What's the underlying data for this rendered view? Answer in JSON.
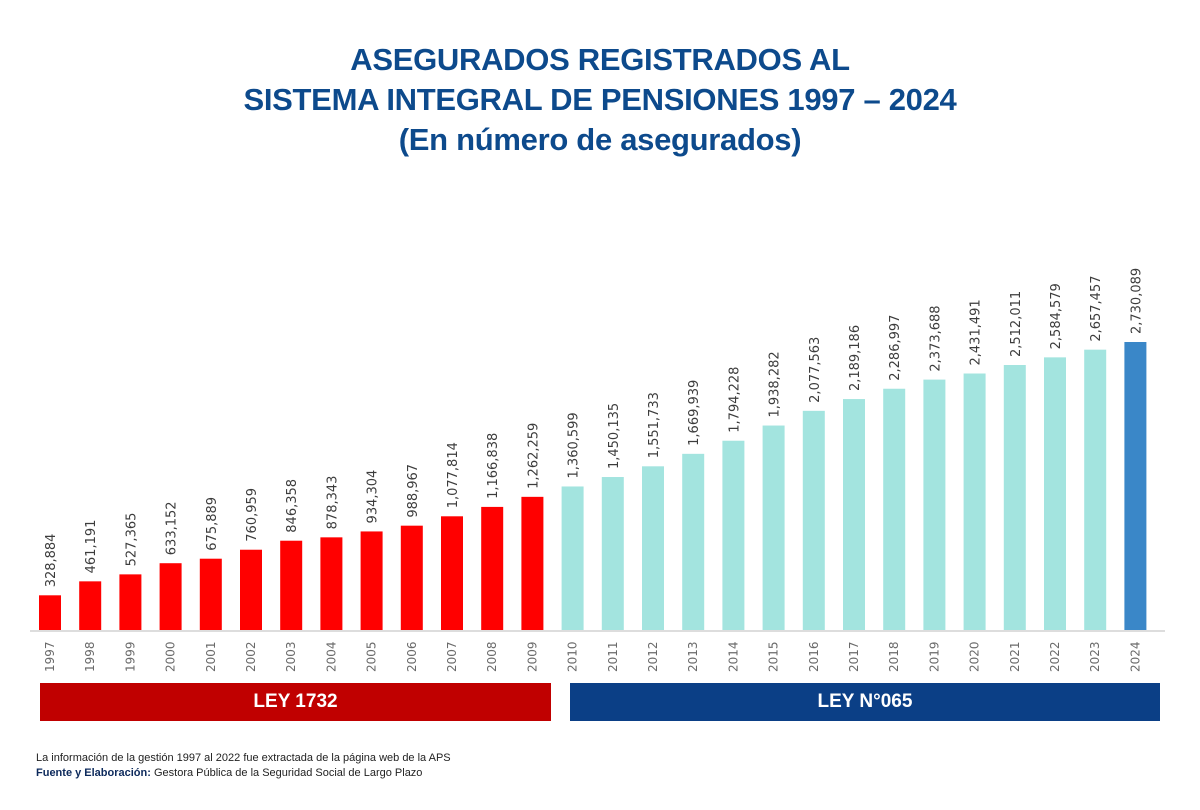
{
  "title": {
    "line1": "ASEGURADOS REGISTRADOS AL",
    "line2": "SISTEMA INTEGRAL DE PENSIONES 1997 – 2024",
    "line3": "(En número de asegurados)"
  },
  "colors": {
    "title": "#0d4a8c",
    "ley1732_bars": "#ff0000",
    "ley065_bars": "#a3e4df",
    "highlight_2024": "#3a87c8",
    "ley1732_band": "#c00000",
    "ley065_band": "#0b3f86"
  },
  "bands": {
    "ley1732": "LEY 1732",
    "ley065": "LEY N°065"
  },
  "footer": {
    "note": "La información de la gestión 1997 al 2022 fue extractada de la página web de la APS",
    "source_label": "Fuente y Elaboración:",
    "source_text": " Gestora Pública de la Seguridad Social de Largo Plazo"
  },
  "chart_data": {
    "type": "bar",
    "title": "ASEGURADOS REGISTRADOS AL SISTEMA INTEGRAL DE PENSIONES 1997 – 2024 (En número de asegurados)",
    "xlabel": "",
    "ylabel": "",
    "ylim": [
      0,
      2900000
    ],
    "grid": false,
    "categories": [
      "1997",
      "1998",
      "1999",
      "2000",
      "2001",
      "2002",
      "2003",
      "2004",
      "2005",
      "2006",
      "2007",
      "2008",
      "2009",
      "2010",
      "2011",
      "2012",
      "2013",
      "2014",
      "2015",
      "2016",
      "2017",
      "2018",
      "2019",
      "2020",
      "2021",
      "2022",
      "2023",
      "2024"
    ],
    "values": [
      328884,
      461191,
      527365,
      633152,
      675889,
      760959,
      846358,
      878343,
      934304,
      988967,
      1077814,
      1166838,
      1262259,
      1360599,
      1450135,
      1551733,
      1669939,
      1794228,
      1938282,
      2077563,
      2189186,
      2286997,
      2373688,
      2431491,
      2512011,
      2584579,
      2657457,
      2730089
    ],
    "data_labels": [
      "328,884",
      "461,191",
      "527,365",
      "633,152",
      "675,889",
      "760,959",
      "846,358",
      "878,343",
      "934,304",
      "988,967",
      "1,077,814",
      "1,166,838",
      "1,262,259",
      "1,360,599",
      "1,450,135",
      "1,551,733",
      "1,669,939",
      "1,794,228",
      "1,938,282",
      "2,077,563",
      "2,189,186",
      "2,286,997",
      "2,373,688",
      "2,431,491",
      "2,512,011",
      "2,584,579",
      "2,657,457",
      "2,730,089"
    ],
    "groups": [
      {
        "name": "LEY 1732",
        "from": "1997",
        "to": "2009",
        "color": "#ff0000"
      },
      {
        "name": "LEY N°065",
        "from": "2010",
        "to": "2023",
        "color": "#a3e4df"
      },
      {
        "name": "LEY N°065 (2024)",
        "from": "2024",
        "to": "2024",
        "color": "#3a87c8"
      }
    ]
  }
}
